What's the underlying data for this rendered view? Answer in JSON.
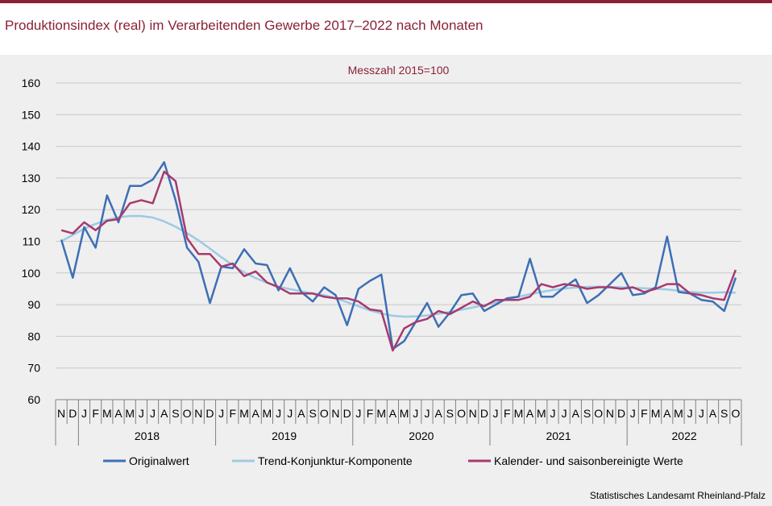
{
  "title": "Produktionsindex (real) im Verarbeitenden Gewerbe 2017–2022 nach Monaten",
  "source": "Statistisches Landesamt Rheinland-Pfalz",
  "colors": {
    "brand": "#8b2035",
    "original": "#3d6fb5",
    "trend": "#9ccbe3",
    "seasonal": "#a63a6e",
    "panel": "#efefef",
    "grid": "#c8c8c8"
  },
  "chart_data": {
    "type": "line",
    "subtitle": "Messzahl 2015=100",
    "ylim": [
      60,
      160
    ],
    "yticks": [
      60,
      70,
      80,
      90,
      100,
      110,
      120,
      130,
      140,
      150,
      160
    ],
    "grid": true,
    "legend_position": "bottom",
    "month_labels": [
      "N",
      "D",
      "J",
      "F",
      "M",
      "A",
      "M",
      "J",
      "J",
      "A",
      "S",
      "O",
      "N",
      "D",
      "J",
      "F",
      "M",
      "A",
      "M",
      "J",
      "J",
      "A",
      "S",
      "O",
      "N",
      "D",
      "J",
      "F",
      "M",
      "A",
      "M",
      "J",
      "J",
      "A",
      "S",
      "O",
      "N",
      "D",
      "J",
      "F",
      "M",
      "A",
      "M",
      "J",
      "J",
      "A",
      "S",
      "O",
      "N",
      "D",
      "J",
      "F",
      "M",
      "A",
      "M",
      "J",
      "J",
      "A",
      "S",
      "O"
    ],
    "years": [
      {
        "label": "2018",
        "start": 2,
        "end": 14
      },
      {
        "label": "2019",
        "start": 14,
        "end": 26
      },
      {
        "label": "2020",
        "start": 26,
        "end": 38
      },
      {
        "label": "2021",
        "start": 38,
        "end": 50
      },
      {
        "label": "2022",
        "start": 50,
        "end": 60
      }
    ],
    "series": [
      {
        "name": "Originalwert",
        "values": [
          110.5,
          98.5,
          114.5,
          108.0,
          124.5,
          116.0,
          127.5,
          127.5,
          129.5,
          135.0,
          123.0,
          108.0,
          103.5,
          90.5,
          102.0,
          101.5,
          107.5,
          103.0,
          102.5,
          94.5,
          101.5,
          94.0,
          91.0,
          95.5,
          93.0,
          83.5,
          95.0,
          97.5,
          99.5,
          76.0,
          78.5,
          84.5,
          90.5,
          83.0,
          87.5,
          93.0,
          93.5,
          88.0,
          90.0,
          92.0,
          92.5,
          104.5,
          92.5,
          92.5,
          95.5,
          98.0,
          90.5,
          93.0,
          96.5,
          100.0,
          93.0,
          93.5,
          95.5,
          111.5,
          94.0,
          93.5,
          91.5,
          91.0,
          88.0,
          98.5
        ]
      },
      {
        "name": "Trend-Konjunktur-Komponente",
        "values": [
          110.0,
          112.0,
          114.0,
          115.5,
          116.8,
          117.6,
          118.0,
          118.0,
          117.5,
          116.3,
          114.6,
          112.6,
          110.3,
          107.7,
          105.0,
          102.5,
          100.2,
          98.4,
          96.9,
          95.7,
          94.9,
          94.2,
          93.6,
          93.0,
          92.0,
          90.8,
          89.5,
          88.2,
          87.2,
          86.5,
          86.2,
          86.3,
          86.6,
          87.1,
          87.7,
          88.4,
          89.1,
          89.9,
          90.7,
          91.6,
          92.5,
          93.3,
          94.0,
          94.6,
          95.1,
          95.4,
          95.6,
          95.7,
          95.6,
          95.5,
          95.3,
          95.2,
          95.0,
          94.8,
          94.4,
          94.0,
          93.8,
          93.8,
          93.9,
          93.8
        ]
      },
      {
        "name": "Kalender- und saisonbereinigte Werte",
        "values": [
          113.5,
          112.5,
          116.0,
          113.5,
          116.5,
          117.0,
          122.0,
          123.0,
          122.0,
          132.0,
          129.0,
          111.0,
          106.0,
          106.0,
          102.0,
          103.0,
          99.0,
          100.5,
          97.0,
          95.5,
          93.5,
          93.5,
          93.5,
          92.5,
          92.0,
          92.0,
          91.0,
          88.5,
          88.0,
          75.5,
          82.5,
          84.5,
          85.5,
          88.0,
          87.0,
          89.0,
          91.0,
          89.5,
          91.5,
          91.5,
          91.5,
          92.5,
          96.5,
          95.5,
          96.5,
          96.0,
          95.0,
          95.5,
          95.5,
          95.0,
          95.5,
          94.0,
          95.0,
          96.5,
          96.5,
          93.5,
          93.0,
          92.0,
          91.5,
          101.0
        ]
      }
    ]
  }
}
